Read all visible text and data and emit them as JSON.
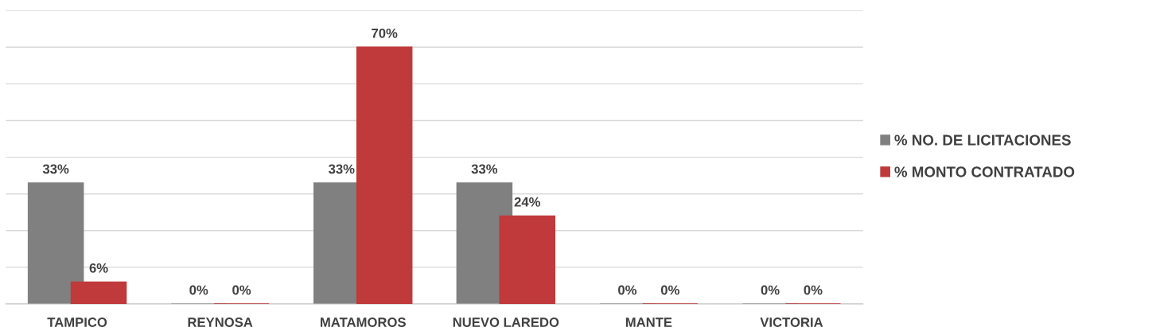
{
  "chart_data": {
    "type": "bar",
    "categories": [
      "TAMPICO",
      "REYNOSA",
      "MATAMOROS",
      "NUEVO LAREDO",
      "MANTE",
      "VICTORIA"
    ],
    "series": [
      {
        "name": "% NO. DE LICITACIONES",
        "color": "#808080",
        "values": [
          33,
          0,
          33,
          33,
          0,
          0
        ],
        "value_labels": [
          "33%",
          "0%",
          "33%",
          "33%",
          "0%",
          "0%"
        ]
      },
      {
        "name": "% MONTO CONTRATADO",
        "color": "#c0393b",
        "values": [
          6,
          0,
          70,
          24,
          0,
          0
        ],
        "value_labels": [
          "6%",
          "0%",
          "70%",
          "24%",
          "0%",
          "0%"
        ]
      }
    ],
    "ylim": [
      0,
      80
    ],
    "yticks": [
      {
        "value": 0,
        "label": null
      },
      {
        "value": 10,
        "label": null
      },
      {
        "value": 20,
        "label": null
      },
      {
        "value": 30,
        "label": null
      },
      {
        "value": 40,
        "label": null
      },
      {
        "value": 50,
        "label": null
      },
      {
        "value": 60,
        "label": null
      },
      {
        "value": 70,
        "label": null
      },
      {
        "value": 80,
        "label": null
      }
    ],
    "tick_labels": "x",
    "grid": "y",
    "legend": "right"
  }
}
